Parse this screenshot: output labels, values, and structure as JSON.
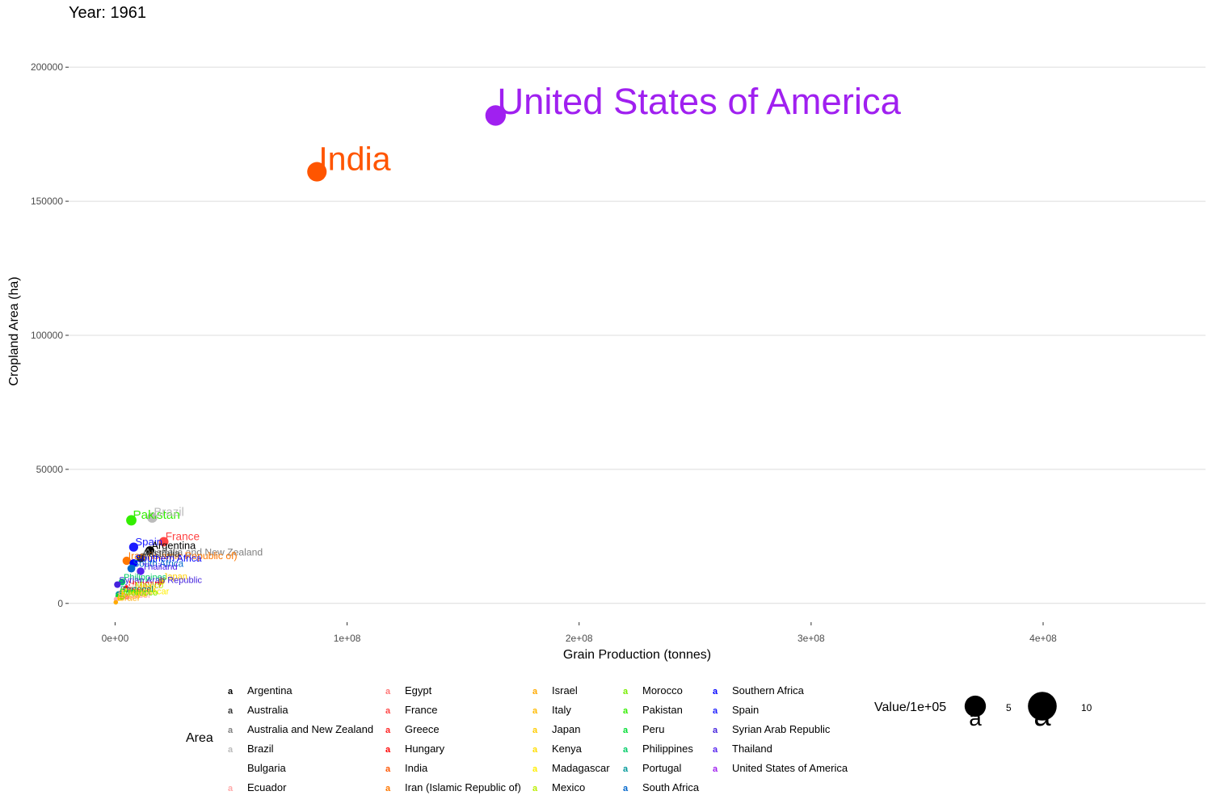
{
  "title": "Year: 1961",
  "legend_area_title": "Area",
  "legend_size_title": "Value/1e+05",
  "chart_data": {
    "type": "scatter",
    "xlabel": "Grain Production (tonnes)",
    "ylabel": "Cropland Area (ha)",
    "xlim": [
      -20000000,
      470000000
    ],
    "ylim": [
      -7000,
      210000
    ],
    "x_ticks": [
      0,
      100000000,
      200000000,
      300000000,
      400000000
    ],
    "x_tick_labels": [
      "0e+00",
      "1e+08",
      "2e+08",
      "3e+08",
      "4e+08"
    ],
    "y_ticks": [
      0,
      50000,
      100000,
      150000,
      200000
    ],
    "y_tick_labels": [
      "0",
      "50000",
      "100000",
      "150000",
      "200000"
    ],
    "grid": "horizontal major lines only",
    "points": [
      {
        "label": "Argentina",
        "x": 15000000,
        "y": 19700,
        "size": 1.9,
        "color": "#000000"
      },
      {
        "label": "Australia",
        "x": 11000000,
        "y": 16800,
        "size": 1.5,
        "color": "#333333"
      },
      {
        "label": "Australia and New Zealand",
        "x": 12000000,
        "y": 17200,
        "size": 1.6,
        "color": "#808080"
      },
      {
        "label": "Brazil",
        "x": 16000000,
        "y": 32000,
        "size": 3.0,
        "color": "#bbbbbb"
      },
      {
        "label": "Bulgaria",
        "x": 4500000,
        "y": 4600,
        "size": 0.5,
        "color": "#ffffff"
      },
      {
        "label": "Ecuador",
        "x": 500000,
        "y": 1500,
        "size": 0.2,
        "color": "#ffaaaa"
      },
      {
        "label": "Egypt",
        "x": 5000000,
        "y": 2600,
        "size": 0.4,
        "color": "#ff7777"
      },
      {
        "label": "France",
        "x": 21000000,
        "y": 23000,
        "size": 2.3,
        "color": "#ff4444"
      },
      {
        "label": "Greece",
        "x": 2500000,
        "y": 3700,
        "size": 0.4,
        "color": "#ff2222"
      },
      {
        "label": "Hungary",
        "x": 5000000,
        "y": 5600,
        "size": 0.6,
        "color": "#ff0000"
      },
      {
        "label": "India",
        "x": 87000000,
        "y": 161000,
        "size": 16.1,
        "color": "#ff5500"
      },
      {
        "label": "Iran (Islamic Republic of)",
        "x": 5000000,
        "y": 15900,
        "size": 1.6,
        "color": "#ff7700"
      },
      {
        "label": "Israel",
        "x": 300000,
        "y": 400,
        "size": 0.1,
        "color": "#ffaa00"
      },
      {
        "label": "Italy",
        "x": 10000000,
        "y": 4100,
        "size": 0.4,
        "color": "#ffbb00"
      },
      {
        "label": "Japan",
        "x": 20000000,
        "y": 8300,
        "size": 0.8,
        "color": "#ffcc00"
      },
      {
        "label": "Kenya",
        "x": 2000000,
        "y": 1900,
        "size": 0.2,
        "color": "#ffdd00"
      },
      {
        "label": "Madagascar",
        "x": 1500000,
        "y": 2800,
        "size": 0.3,
        "color": "#ffee00"
      },
      {
        "label": "Mexico",
        "x": 8000000,
        "y": 5000,
        "size": 0.5,
        "color": "#bbee00"
      },
      {
        "label": "Morocco",
        "x": 3000000,
        "y": 2300,
        "size": 0.2,
        "color": "#77ee00"
      },
      {
        "label": "Pakistan",
        "x": 7000000,
        "y": 31000,
        "size": 3.1,
        "color": "#33ee00"
      },
      {
        "label": "Peru",
        "x": 1300000,
        "y": 2600,
        "size": 0.3,
        "color": "#00dd33"
      },
      {
        "label": "Philippines",
        "x": 3000000,
        "y": 8000,
        "size": 0.8,
        "color": "#00cc66"
      },
      {
        "label": "Portugal",
        "x": 1500000,
        "y": 3500,
        "size": 0.4,
        "color": "#009999"
      },
      {
        "label": "South Africa",
        "x": 7000000,
        "y": 13000,
        "size": 1.3,
        "color": "#0066cc"
      },
      {
        "label": "Southern Africa",
        "x": 8000000,
        "y": 15000,
        "size": 1.5,
        "color": "#0000ff"
      },
      {
        "label": "Spain",
        "x": 8000000,
        "y": 21000,
        "size": 2.1,
        "color": "#1a1aff"
      },
      {
        "label": "Syrian Arab Republic",
        "x": 1000000,
        "y": 7000,
        "size": 0.7,
        "color": "#4422dd"
      },
      {
        "label": "Thailand",
        "x": 11000000,
        "y": 12000,
        "size": 1.2,
        "color": "#5522ee"
      },
      {
        "label": "United States of America",
        "x": 164000000,
        "y": 182000,
        "size": 18.2,
        "color": "#a020f0"
      }
    ],
    "legend": {
      "area_items": [
        "Argentina",
        "Australia",
        "Australia and New Zealand",
        "Brazil",
        "Bulgaria",
        "Ecuador",
        "Egypt",
        "France",
        "Greece",
        "Hungary",
        "India",
        "Iran (Islamic Republic of)",
        "Israel",
        "Italy",
        "Japan",
        "Kenya",
        "Madagascar",
        "Mexico",
        "Morocco",
        "Pakistan",
        "Peru",
        "Philippines",
        "Portugal",
        "South Africa",
        "Southern Africa",
        "Spain",
        "Syrian Arab Republic",
        "Thailand",
        "United States of America"
      ],
      "key_glyph": "a",
      "size_breaks": [
        5,
        10
      ]
    }
  }
}
